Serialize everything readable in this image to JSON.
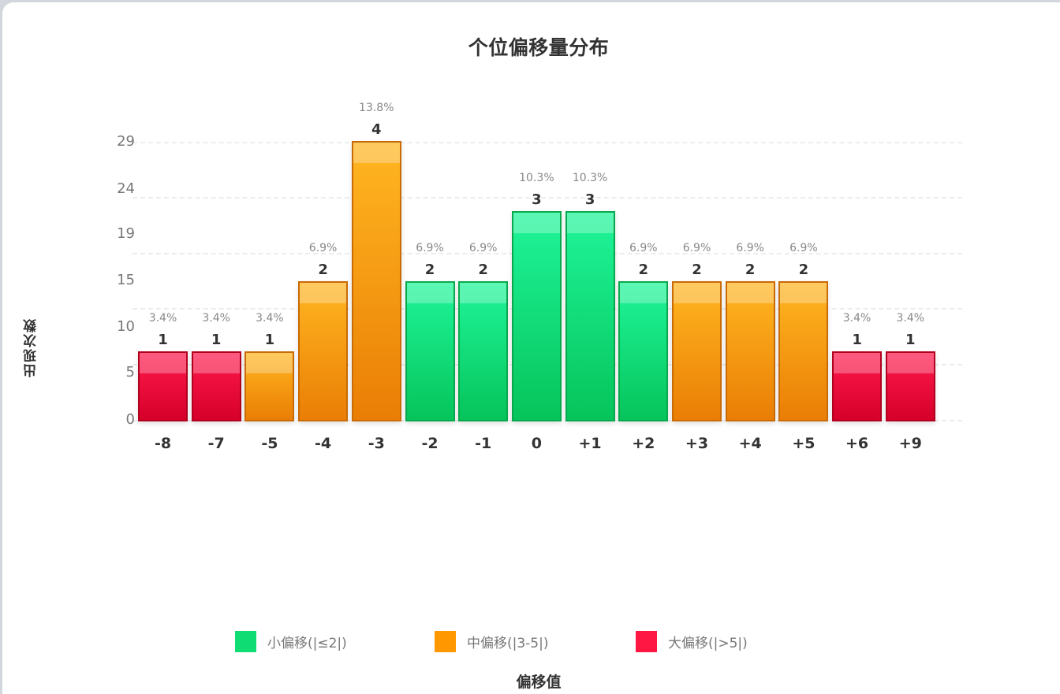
{
  "chart_data": {
    "type": "bar",
    "title": "个位偏移量分布",
    "xlabel": "偏移值",
    "ylabel": "出现次数",
    "categories": [
      "-8",
      "-7",
      "-5",
      "-4",
      "-3",
      "-2",
      "-1",
      "0",
      "+1",
      "+2",
      "+3",
      "+4",
      "+5",
      "+6",
      "+9"
    ],
    "values": [
      1,
      1,
      1,
      2,
      4,
      2,
      2,
      3,
      3,
      2,
      2,
      2,
      2,
      1,
      1
    ],
    "percentages": [
      "3.4%",
      "3.4%",
      "3.4%",
      "6.9%",
      "13.8%",
      "6.9%",
      "6.9%",
      "10.3%",
      "10.3%",
      "6.9%",
      "6.9%",
      "6.9%",
      "6.9%",
      "3.4%",
      "3.4%"
    ],
    "groups": [
      "large",
      "large",
      "medium",
      "medium",
      "medium",
      "small",
      "small",
      "small",
      "small",
      "small",
      "medium",
      "medium",
      "medium",
      "large",
      "large"
    ],
    "y_tick_labels": [
      "0",
      "5",
      "10",
      "15",
      "19",
      "24",
      "29"
    ],
    "grid": true,
    "legend_position": "bottom",
    "legend": [
      {
        "key": "small",
        "label": "小偏移(|≤2|)",
        "color": "#0fdc72"
      },
      {
        "key": "medium",
        "label": "中偏移(|3-5|)",
        "color": "#ff9800"
      },
      {
        "key": "large",
        "label": "大偏移(|>5|)",
        "color": "#ff1744"
      }
    ]
  }
}
